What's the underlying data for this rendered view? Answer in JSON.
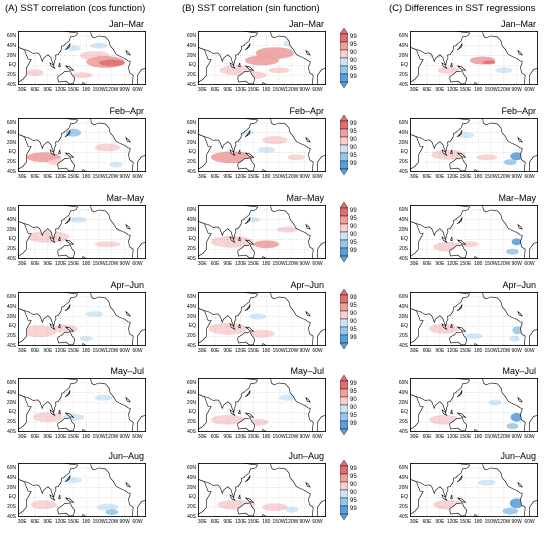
{
  "columns": [
    {
      "label": "(A) SST correlation (cos function)"
    },
    {
      "label": "(B) SST correlation (sin function)"
    },
    {
      "label": "(C) Differences in SST regressions"
    }
  ],
  "seasons": [
    "Jan–Mar",
    "Feb–Apr",
    "Mar–May",
    "Apr–Jun",
    "May–Jul",
    "Jun–Aug"
  ],
  "lat_labels": [
    "60N",
    "40N",
    "20N",
    "EQ",
    "20S",
    "40S"
  ],
  "lon_labels": [
    "30E",
    "60E",
    "90E",
    "120E",
    "150E",
    "180",
    "150W",
    "120W",
    "90W",
    "60W"
  ],
  "colorbar_labels": [
    "99",
    "95",
    "90",
    "90",
    "95",
    "99"
  ],
  "colors": {
    "pos_99": "#de7070",
    "pos_95": "#ee9f9f",
    "pos_90": "#f7cfcf",
    "neg_90": "#cde4f6",
    "neg_95": "#96c6ec",
    "neg_99": "#5a9fdc",
    "land": "#ffffff",
    "coast": "#000000",
    "grid": "#aaaaaa"
  }
}
